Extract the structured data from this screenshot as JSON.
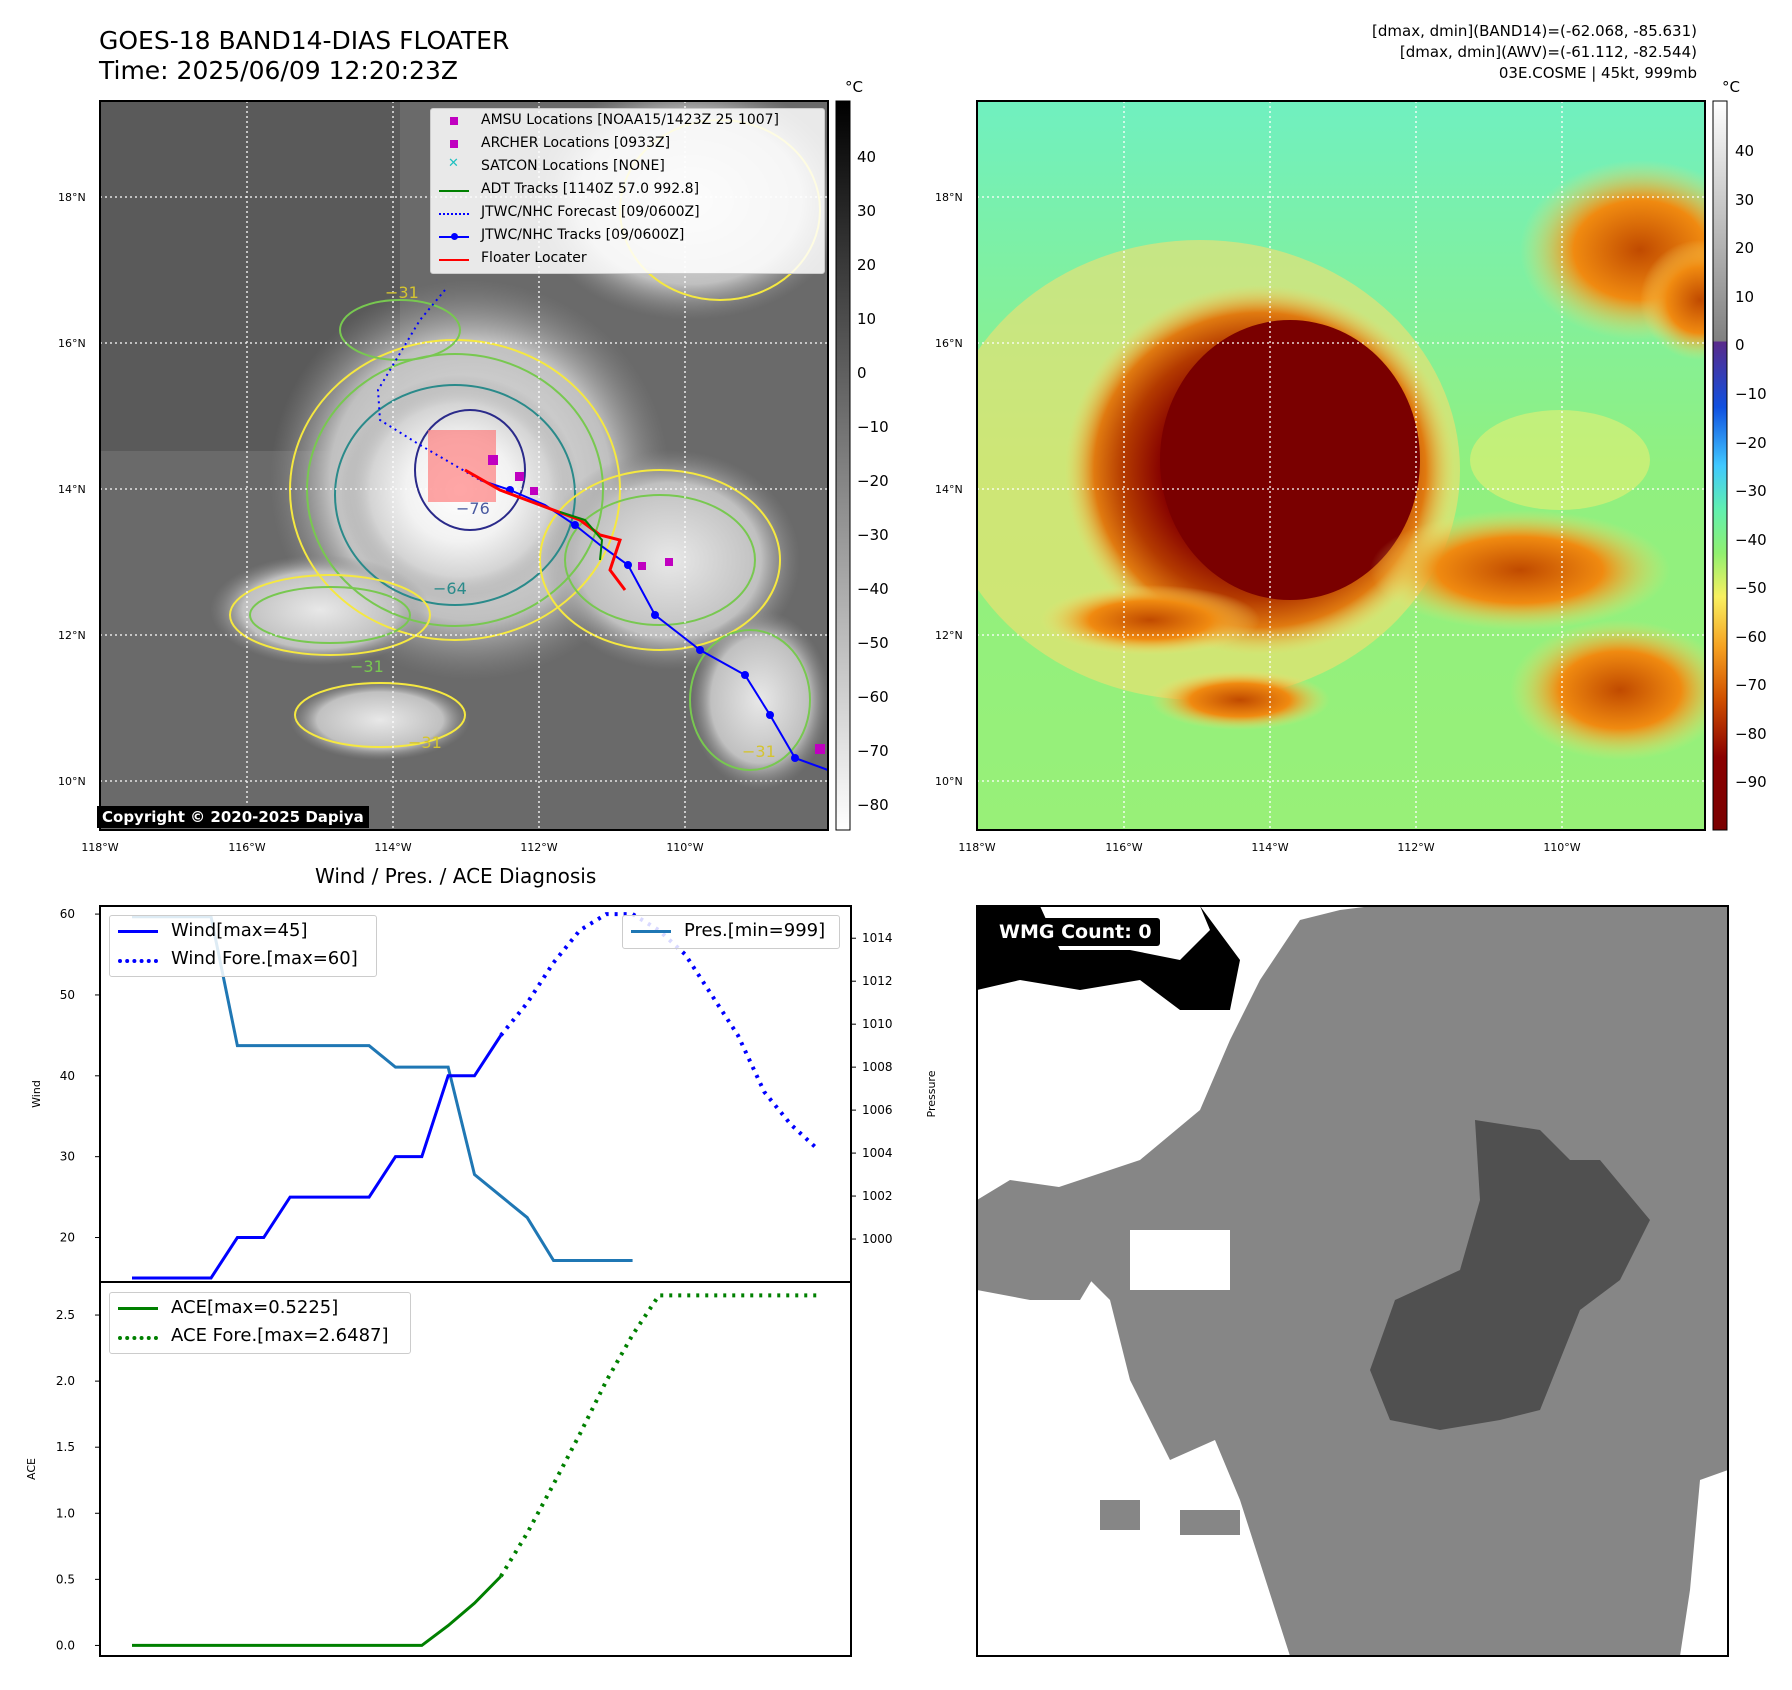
{
  "header": {
    "title_line1": "GOES-18 BAND14-DIAS FLOATER",
    "title_line2": "Time: 2025/06/09 12:20:23Z",
    "right_line1": "[dmax, dmin](BAND14)=(-62.068, -85.631)",
    "right_line2": "[dmax, dmin](AWV)=(-61.112, -82.544)",
    "right_line3": "03E.COSME | 45kt, 999mb"
  },
  "map_axes": {
    "lon_labels": [
      "118°W",
      "116°W",
      "114°W",
      "112°W",
      "110°W"
    ],
    "lat_labels": [
      "18°N",
      "16°N",
      "14°N",
      "12°N",
      "10°N"
    ]
  },
  "left_panel": {
    "colorbar_unit": "°C",
    "colorbar_ticks": [
      "40",
      "30",
      "20",
      "10",
      "0",
      "−10",
      "−20",
      "−30",
      "−40",
      "−50",
      "−60",
      "−70",
      "−80"
    ],
    "contour_labels": [
      "−31",
      "−31",
      "−76",
      "−64",
      "−31",
      "−31"
    ],
    "copyright": "Copyright © 2020-2025 Dapiya",
    "legend": [
      {
        "label": "AMSU Locations [NOAA15/1423Z 25 1007]",
        "marker": "square",
        "color": "#c000c0"
      },
      {
        "label": "ARCHER Locations [0933Z]",
        "marker": "square",
        "color": "#c000c0"
      },
      {
        "label": "SATCON Locations [NONE]",
        "marker": "x",
        "color": "#20c0c0"
      },
      {
        "label": "ADT Tracks [1140Z 57.0 992.8]",
        "marker": "line",
        "color": "#008000"
      },
      {
        "label": "JTWC/NHC Forecast [09/0600Z]",
        "marker": "dotted",
        "color": "#0000ff"
      },
      {
        "label": "JTWC/NHC Tracks [09/0600Z]",
        "marker": "line-dot",
        "color": "#0000ff"
      },
      {
        "label": "Floater Locater",
        "marker": "line",
        "color": "#ff0000"
      }
    ]
  },
  "right_panel": {
    "colorbar_unit": "°C",
    "colorbar_ticks": [
      "40",
      "30",
      "20",
      "10",
      "0",
      "−10",
      "−20",
      "−30",
      "−40",
      "−50",
      "−60",
      "−70",
      "−80",
      "−90"
    ]
  },
  "diagnosis": {
    "title": "Wind / Pres. / ACE Diagnosis",
    "wind_ylabel": "Wind",
    "pres_ylabel": "Pressure",
    "ace_ylabel": "ACE",
    "wind_ticks": [
      "60",
      "50",
      "40",
      "30",
      "20"
    ],
    "pres_ticks": [
      "1014",
      "1012",
      "1010",
      "1008",
      "1006",
      "1004",
      "1002",
      "1000"
    ],
    "ace_ticks": [
      "2.5",
      "2.0",
      "1.5",
      "1.0",
      "0.5",
      "0.0"
    ],
    "legend_wind": "Wind[max=45]",
    "legend_wind_fore": "Wind Fore.[max=60]",
    "legend_pres": "Pres.[min=999]",
    "legend_ace": "ACE[max=0.5225]",
    "legend_ace_fore": "ACE Fore.[max=2.6487]"
  },
  "wmg": {
    "label": "WMG Count: 0"
  },
  "colors": {
    "wind": "#0000ff",
    "pressure": "#1f77b4",
    "ace": "#008000",
    "floater": "#ff0000"
  },
  "chart_data": [
    {
      "type": "line",
      "name": "wind-pressure",
      "x": [
        0,
        1,
        2,
        3,
        4,
        5,
        6,
        7,
        8,
        9,
        10,
        11,
        12,
        13,
        14,
        15,
        16,
        17,
        18,
        19,
        20,
        21,
        22,
        23,
        24,
        25,
        26
      ],
      "series": [
        {
          "name": "Wind[max=45]",
          "axis": "left",
          "values": [
            15,
            15,
            15,
            15,
            20,
            20,
            25,
            25,
            25,
            25,
            30,
            30,
            40,
            40,
            45,
            null,
            null,
            null,
            null,
            null,
            null,
            null,
            null,
            null,
            null,
            null,
            null
          ]
        },
        {
          "name": "Wind Fore.[max=60]",
          "axis": "left",
          "values": [
            null,
            null,
            null,
            null,
            null,
            null,
            null,
            null,
            null,
            null,
            null,
            null,
            null,
            null,
            45,
            49,
            54,
            58,
            60,
            60,
            58,
            55,
            50,
            45,
            38,
            34,
            31
          ]
        },
        {
          "name": "Pres.[min=999]",
          "axis": "right",
          "values": [
            1015,
            1015,
            1015,
            1015,
            1009,
            1009,
            1009,
            1009,
            1009,
            1009,
            1008,
            1008,
            1008,
            1003,
            1002,
            1001,
            999,
            999,
            999,
            999,
            null,
            null,
            null,
            null,
            null,
            null,
            null
          ]
        }
      ],
      "ylim_left": [
        14.5,
        61
      ],
      "ylim_right": [
        998,
        1015.5
      ],
      "ylabel_left": "Wind",
      "ylabel_right": "Pressure"
    },
    {
      "type": "line",
      "name": "ace",
      "x": [
        0,
        1,
        2,
        3,
        4,
        5,
        6,
        7,
        8,
        9,
        10,
        11,
        12,
        13,
        14,
        15,
        16,
        17,
        18,
        19,
        20,
        21,
        22,
        23,
        24,
        25,
        26
      ],
      "series": [
        {
          "name": "ACE[max=0.5225]",
          "values": [
            0,
            0,
            0,
            0,
            0,
            0,
            0,
            0,
            0,
            0,
            0,
            0,
            0.15,
            0.32,
            0.5225,
            null,
            null,
            null,
            null,
            null,
            null,
            null,
            null,
            null,
            null,
            null,
            null
          ]
        },
        {
          "name": "ACE Fore.[max=2.6487]",
          "values": [
            null,
            null,
            null,
            null,
            null,
            null,
            null,
            null,
            null,
            null,
            null,
            null,
            null,
            null,
            0.5225,
            0.85,
            1.22,
            1.6,
            2.0,
            2.35,
            2.6487,
            2.6487,
            2.6487,
            2.6487,
            2.6487,
            2.6487,
            2.6487
          ]
        }
      ],
      "ylim": [
        -0.08,
        2.75
      ],
      "ylabel": "ACE"
    }
  ]
}
